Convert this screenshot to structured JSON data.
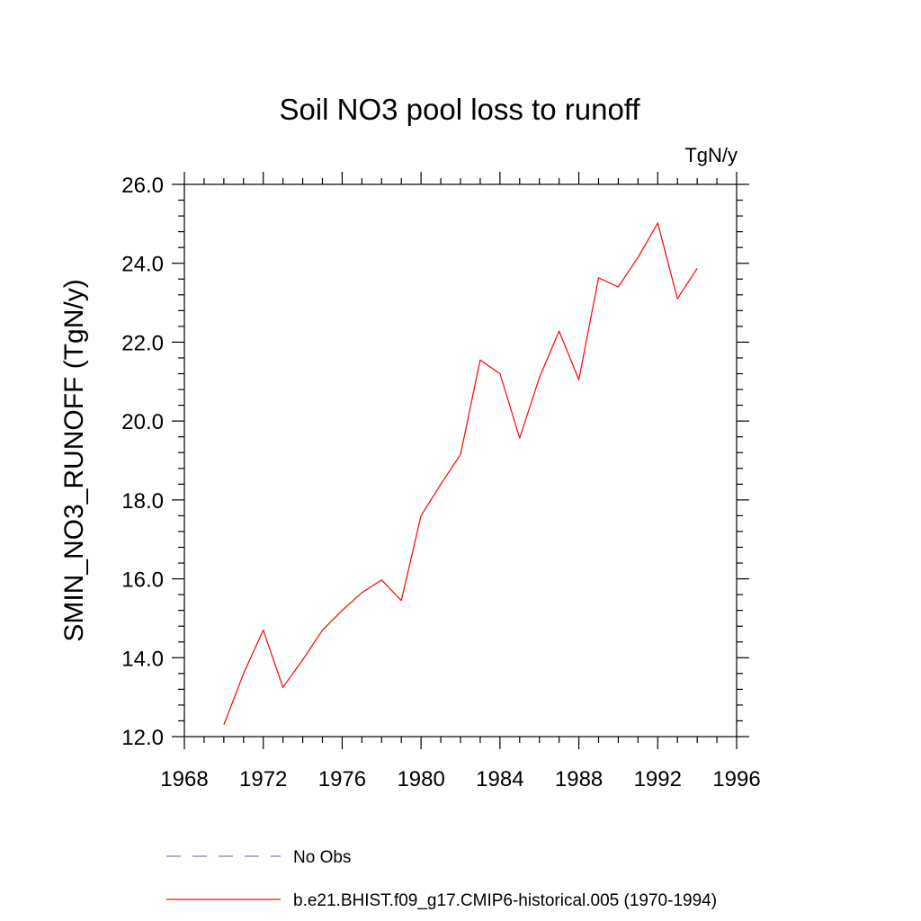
{
  "chart_data": {
    "type": "line",
    "title": "Soil NO3 pool loss to runoff",
    "units_label": "TgN/y",
    "xlabel": "",
    "ylabel": "SMIN_NO3_RUNOFF  (TgN/y)",
    "xlim": [
      1968,
      1996
    ],
    "ylim": [
      12.0,
      26.0
    ],
    "x_ticks": [
      1968,
      1972,
      1976,
      1980,
      1984,
      1988,
      1992,
      1996
    ],
    "x_tick_labels": [
      "1968",
      "1972",
      "1976",
      "1980",
      "1984",
      "1988",
      "1992",
      "1996"
    ],
    "y_ticks": [
      12.0,
      14.0,
      16.0,
      18.0,
      20.0,
      22.0,
      24.0,
      26.0
    ],
    "y_tick_labels": [
      "12.0",
      "14.0",
      "16.0",
      "18.0",
      "20.0",
      "22.0",
      "24.0",
      "26.0"
    ],
    "grid": false,
    "legend_position": "bottom",
    "series": [
      {
        "name": "b.e21.BHIST.f09_g17.CMIP6-historical.005 (1970-1994)",
        "color": "#ff0000",
        "style": "solid",
        "x": [
          1970,
          1971,
          1972,
          1973,
          1974,
          1975,
          1976,
          1977,
          1978,
          1979,
          1980,
          1981,
          1982,
          1983,
          1984,
          1985,
          1986,
          1987,
          1988,
          1989,
          1990,
          1991,
          1992,
          1993,
          1994
        ],
        "y": [
          12.3,
          13.6,
          14.7,
          13.25,
          13.95,
          14.7,
          15.2,
          15.65,
          15.97,
          15.45,
          17.6,
          18.4,
          19.15,
          21.55,
          21.2,
          19.57,
          21.1,
          22.28,
          21.05,
          23.63,
          23.4,
          24.15,
          25.02,
          23.1,
          23.87
        ]
      }
    ],
    "legend": [
      {
        "label": "No Obs",
        "color": "#7f7fbf",
        "style": "dashed"
      },
      {
        "label": "b.e21.BHIST.f09_g17.CMIP6-historical.005 (1970-1994)",
        "color": "#ff0000",
        "style": "solid"
      }
    ]
  }
}
